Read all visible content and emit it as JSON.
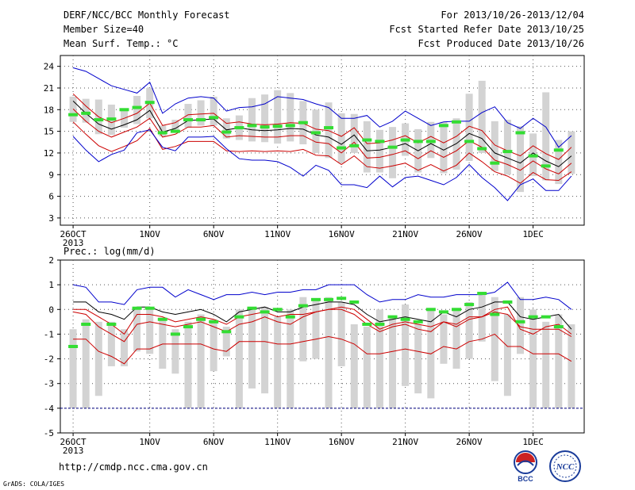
{
  "header": {
    "title": "DERF/NCC/BCC Monthly Forecast",
    "member_size": "Member Size=40",
    "variable1": "Mean Surf. Temp.: °C",
    "period": "For 2013/10/26-2013/12/04",
    "started": "Fcst Started Refer Date 2013/10/25",
    "produced": "Fcst Produced Date 2013/10/26"
  },
  "footer": {
    "url": "http://cmdp.ncc.cma.gov.cn",
    "credit": "GrADS: COLA/IGES",
    "logo1_text": "BCC",
    "logo2_text": "NCC"
  },
  "colors": {
    "envelope": "#0000cc",
    "spread": "#cc0000",
    "mean": "#000000",
    "obs": "#33dd33",
    "box": "#d3d3d3",
    "baseline": "#000080"
  },
  "chart_data": [
    {
      "type": "line",
      "title": "Mean Surf. Temp.: °C",
      "x_tick_labels": [
        "26OCT",
        "1NOV",
        "6NOV",
        "11NOV",
        "16NOV",
        "21NOV",
        "26NOV",
        "1DEC"
      ],
      "x_tick_days": [
        1,
        7,
        12,
        17,
        22,
        27,
        32,
        37
      ],
      "x_sub_label": "2013",
      "xlim": [
        0,
        41
      ],
      "ylim": [
        2,
        25.5
      ],
      "yticks": [
        3,
        6,
        9,
        12,
        15,
        18,
        21,
        24
      ],
      "x": [
        1,
        2,
        3,
        4,
        5,
        6,
        7,
        8,
        9,
        10,
        11,
        12,
        13,
        14,
        15,
        16,
        17,
        18,
        19,
        20,
        21,
        22,
        23,
        24,
        25,
        26,
        27,
        28,
        29,
        30,
        31,
        32,
        33,
        34,
        35,
        36,
        37,
        38,
        39,
        40
      ],
      "series": [
        {
          "role": "max",
          "values": [
            23.8,
            23.3,
            22.3,
            21.3,
            20.8,
            20.3,
            21.8,
            17.5,
            18.8,
            19.6,
            19.8,
            19.6,
            17.8,
            18.3,
            18.4,
            18.8,
            19.8,
            19.6,
            19.4,
            18.8,
            18.3,
            16.8,
            16.8,
            17.2,
            15.6,
            16.4,
            17.8,
            16.8,
            15.8,
            16.3,
            16.4,
            16.4,
            17.6,
            18.4,
            16.2,
            15.4,
            16.8,
            15.6,
            12.8,
            14.4
          ]
        },
        {
          "role": "upper",
          "values": [
            20.2,
            18.5,
            17.0,
            16.2,
            16.8,
            17.5,
            18.9,
            15.8,
            16.2,
            17.3,
            17.4,
            17.5,
            16.1,
            16.3,
            16.0,
            15.9,
            16.0,
            16.2,
            16.1,
            15.3,
            15.1,
            14.3,
            15.5,
            13.3,
            13.4,
            13.8,
            14.4,
            13.4,
            14.3,
            13.4,
            14.3,
            15.7,
            15.1,
            13.1,
            12.3,
            11.6,
            13.0,
            11.9,
            11.1,
            12.8
          ]
        },
        {
          "role": "mean",
          "values": [
            19.2,
            17.5,
            16.0,
            15.3,
            15.9,
            16.6,
            17.9,
            14.9,
            15.4,
            16.5,
            16.6,
            16.7,
            15.2,
            15.5,
            15.2,
            15.1,
            15.2,
            15.4,
            15.3,
            14.5,
            14.2,
            13.2,
            14.5,
            12.3,
            12.4,
            12.8,
            13.3,
            12.3,
            13.3,
            12.4,
            13.3,
            14.7,
            14.0,
            12.0,
            11.3,
            10.6,
            12.0,
            10.9,
            10.1,
            11.6
          ]
        },
        {
          "role": "lower",
          "values": [
            18.1,
            16.4,
            15.0,
            14.2,
            14.9,
            15.6,
            16.8,
            14.2,
            14.6,
            15.6,
            15.6,
            15.8,
            14.2,
            14.4,
            14.3,
            14.2,
            14.2,
            14.4,
            14.4,
            13.5,
            13.3,
            12.0,
            13.5,
            11.3,
            11.4,
            11.8,
            12.3,
            11.2,
            12.3,
            11.4,
            12.3,
            13.7,
            12.8,
            11.0,
            10.4,
            9.6,
            10.9,
            9.8,
            9.1,
            10.6
          ]
        },
        {
          "role": "lowest",
          "values": [
            16.3,
            14.6,
            13.0,
            12.2,
            12.9,
            13.7,
            15.4,
            12.5,
            12.9,
            13.6,
            13.6,
            13.6,
            12.3,
            12.2,
            12.3,
            12.2,
            12.3,
            12.2,
            12.5,
            11.7,
            11.6,
            10.4,
            11.6,
            10.1,
            9.9,
            10.2,
            10.6,
            9.6,
            10.4,
            9.5,
            10.3,
            12.0,
            10.8,
            9.4,
            8.8,
            7.8,
            9.3,
            8.3,
            8.2,
            9.4
          ]
        },
        {
          "role": "min",
          "values": [
            14.3,
            12.4,
            10.8,
            11.8,
            12.4,
            14.8,
            15.2,
            12.8,
            12.3,
            14.2,
            14.2,
            14.3,
            12.6,
            11.2,
            11.0,
            11.0,
            10.8,
            10.0,
            8.8,
            10.3,
            9.6,
            7.6,
            7.6,
            7.2,
            8.8,
            7.3,
            8.6,
            8.8,
            8.2,
            7.6,
            8.6,
            10.4,
            8.6,
            7.2,
            5.4,
            7.6,
            8.4,
            6.8,
            6.8,
            8.8
          ]
        }
      ],
      "boxes": [
        [
          16.3,
          19.8
        ],
        [
          16.2,
          19.5
        ],
        [
          14.6,
          19.4
        ],
        [
          14.5,
          18.7
        ],
        [
          15.5,
          18.1
        ],
        [
          16.0,
          19.9
        ],
        [
          16.8,
          21.0
        ],
        [
          14.3,
          15.8
        ],
        [
          14.8,
          16.6
        ],
        [
          15.5,
          18.8
        ],
        [
          15.8,
          19.3
        ],
        [
          15.8,
          19.8
        ],
        [
          14.0,
          16.8
        ],
        [
          13.8,
          17.2
        ],
        [
          13.6,
          19.6
        ],
        [
          13.5,
          20.1
        ],
        [
          13.3,
          20.7
        ],
        [
          13.6,
          20.3
        ],
        [
          13.2,
          19.2
        ],
        [
          12.0,
          18.0
        ],
        [
          11.3,
          19.0
        ],
        [
          10.6,
          17.5
        ],
        [
          12.0,
          17.4
        ],
        [
          9.3,
          16.4
        ],
        [
          9.3,
          15.2
        ],
        [
          8.5,
          15.6
        ],
        [
          11.6,
          16.1
        ],
        [
          9.3,
          15.3
        ],
        [
          11.3,
          16.3
        ],
        [
          9.2,
          16.3
        ],
        [
          9.7,
          16.8
        ],
        [
          10.9,
          20.2
        ],
        [
          12.0,
          22.0
        ],
        [
          9.5,
          16.4
        ],
        [
          9.0,
          16.6
        ],
        [
          6.6,
          15.7
        ],
        [
          8.8,
          14.7
        ],
        [
          8.2,
          20.4
        ],
        [
          7.7,
          13.8
        ],
        [
          9.1,
          15.0
        ]
      ],
      "obs": [
        17.3,
        17.5,
        16.6,
        16.7,
        18.0,
        18.3,
        19.0,
        14.8,
        15.0,
        16.6,
        16.6,
        16.9,
        14.9,
        15.5,
        15.8,
        15.6,
        15.7,
        15.8,
        16.2,
        14.8,
        15.5,
        12.7,
        13.0,
        13.8,
        13.6,
        12.8,
        13.8,
        13.6,
        13.6,
        15.8,
        16.3,
        13.6,
        12.6,
        10.6,
        12.2,
        14.8,
        11.6,
        10.2,
        12.4,
        null
      ]
    },
    {
      "type": "line",
      "title": "Prec.: log(mm/d)",
      "x_tick_labels": [
        "26OCT",
        "1NOV",
        "6NOV",
        "11NOV",
        "16NOV",
        "21NOV",
        "26NOV",
        "1DEC"
      ],
      "x_tick_days": [
        1,
        7,
        12,
        17,
        22,
        27,
        32,
        37
      ],
      "x_sub_label": "2013",
      "xlim": [
        0,
        41
      ],
      "ylim": [
        -5,
        2
      ],
      "yticks": [
        -5,
        -4,
        -3,
        -2,
        -1,
        0,
        1,
        2
      ],
      "x": [
        1,
        2,
        3,
        4,
        5,
        6,
        7,
        8,
        9,
        10,
        11,
        12,
        13,
        14,
        15,
        16,
        17,
        18,
        19,
        20,
        21,
        22,
        23,
        24,
        25,
        26,
        27,
        28,
        29,
        30,
        31,
        32,
        33,
        34,
        35,
        36,
        37,
        38,
        39,
        40
      ],
      "series": [
        {
          "role": "max",
          "values": [
            1.0,
            0.9,
            0.3,
            0.3,
            0.2,
            0.8,
            0.9,
            0.9,
            0.5,
            0.8,
            0.6,
            0.4,
            0.6,
            0.6,
            0.7,
            0.6,
            0.7,
            0.7,
            0.8,
            0.8,
            1.0,
            1.0,
            1.0,
            0.6,
            0.3,
            0.4,
            0.4,
            0.6,
            0.5,
            0.5,
            0.6,
            0.6,
            0.6,
            0.7,
            1.1,
            0.4,
            0.4,
            0.5,
            0.4,
            0.0
          ]
        },
        {
          "role": "upper",
          "values": [
            0.0,
            0.0,
            -0.3,
            -0.6,
            -1.0,
            -0.2,
            -0.2,
            -0.3,
            -0.5,
            -0.4,
            -0.3,
            -0.4,
            -0.6,
            -0.3,
            -0.2,
            -0.1,
            -0.3,
            -0.2,
            -0.2,
            -0.1,
            0.0,
            0.1,
            0.0,
            -0.4,
            -0.8,
            -0.6,
            -0.5,
            -0.6,
            -0.7,
            -0.5,
            -0.6,
            -0.3,
            -0.3,
            0.0,
            0.1,
            -0.8,
            -1.0,
            -0.7,
            -0.6,
            -1.0
          ]
        },
        {
          "role": "mean",
          "values": [
            0.3,
            0.3,
            -0.1,
            -0.2,
            -0.4,
            0.1,
            0.1,
            -0.1,
            -0.2,
            -0.1,
            0.0,
            -0.2,
            -0.5,
            -0.1,
            0.0,
            0.1,
            -0.1,
            -0.1,
            0.1,
            0.2,
            0.3,
            0.3,
            0.2,
            -0.2,
            -0.5,
            -0.4,
            -0.3,
            -0.4,
            -0.5,
            -0.1,
            -0.3,
            0.0,
            0.1,
            0.3,
            0.3,
            -0.3,
            -0.4,
            -0.3,
            -0.2,
            -0.8
          ]
        },
        {
          "role": "lower",
          "values": [
            -0.1,
            -0.2,
            -0.7,
            -1.0,
            -1.3,
            -0.6,
            -0.5,
            -0.6,
            -0.7,
            -0.6,
            -0.5,
            -0.7,
            -0.9,
            -0.6,
            -0.5,
            -0.3,
            -0.5,
            -0.6,
            -0.3,
            -0.1,
            0.0,
            0.0,
            -0.2,
            -0.6,
            -0.9,
            -0.7,
            -0.6,
            -0.8,
            -0.9,
            -0.5,
            -0.7,
            -0.4,
            -0.3,
            -0.1,
            -0.2,
            -0.7,
            -0.8,
            -0.8,
            -0.8,
            -1.1
          ]
        },
        {
          "role": "lowest",
          "values": [
            -1.2,
            -1.2,
            -1.7,
            -1.9,
            -2.2,
            -1.6,
            -1.6,
            -1.4,
            -1.4,
            -1.4,
            -1.4,
            -1.6,
            -1.7,
            -1.3,
            -1.3,
            -1.3,
            -1.4,
            -1.4,
            -1.3,
            -1.2,
            -1.1,
            -1.2,
            -1.4,
            -1.8,
            -1.8,
            -1.7,
            -1.6,
            -1.7,
            -1.8,
            -1.5,
            -1.6,
            -1.3,
            -1.2,
            -1.0,
            -1.5,
            -1.5,
            -1.8,
            -1.8,
            -1.8,
            -2.1
          ]
        }
      ],
      "baseline": -4,
      "boxes": [
        [
          -4,
          -0.8
        ],
        [
          -4,
          -0.4
        ],
        [
          -3.5,
          -0.5
        ],
        [
          -2.3,
          -0.5
        ],
        [
          -2.3,
          -0.8
        ],
        [
          -1.7,
          0.1
        ],
        [
          -1.8,
          0.0
        ],
        [
          -2.4,
          -0.4
        ],
        [
          -2.6,
          -0.8
        ],
        [
          -4,
          -0.5
        ],
        [
          -4,
          -0.2
        ],
        [
          -2.5,
          -0.4
        ],
        [
          -1.9,
          -0.7
        ],
        [
          -4,
          0.0
        ],
        [
          -3.2,
          0.1
        ],
        [
          -3.4,
          0.1
        ],
        [
          -4,
          -0.3
        ],
        [
          -4,
          0.0
        ],
        [
          -2.1,
          0.5
        ],
        [
          -2.0,
          0.4
        ],
        [
          -4,
          0.5
        ],
        [
          -2.3,
          0.3
        ],
        [
          -4,
          -0.6
        ],
        [
          -4,
          -0.7
        ],
        [
          -4,
          0.0
        ],
        [
          -4,
          -0.3
        ],
        [
          -3.1,
          0.2
        ],
        [
          -3.4,
          -0.6
        ],
        [
          -3.6,
          0.0
        ],
        [
          -2.2,
          -0.2
        ],
        [
          -2.4,
          0.0
        ],
        [
          -2.0,
          0.3
        ],
        [
          -1.3,
          0.6
        ],
        [
          -2.9,
          0.5
        ],
        [
          -3.5,
          -0.2
        ],
        [
          -1.8,
          0.5
        ],
        [
          -4,
          0.0
        ],
        [
          -4,
          -0.5
        ],
        [
          -4,
          -0.2
        ],
        [
          -4,
          -0.6
        ]
      ],
      "obs": [
        -1.5,
        -0.6,
        null,
        -0.6,
        null,
        0.05,
        0.05,
        -0.4,
        -1.0,
        -0.7,
        -0.4,
        -0.5,
        -0.9,
        -0.3,
        0.05,
        -0.1,
        0.0,
        -0.3,
        0.15,
        0.4,
        0.4,
        0.45,
        0.3,
        -0.6,
        -0.6,
        -0.3,
        -0.4,
        -0.5,
        0.0,
        -0.1,
        0.0,
        0.2,
        0.65,
        -0.2,
        0.3,
        -0.5,
        -0.3,
        -0.3,
        -0.7,
        null
      ]
    }
  ]
}
